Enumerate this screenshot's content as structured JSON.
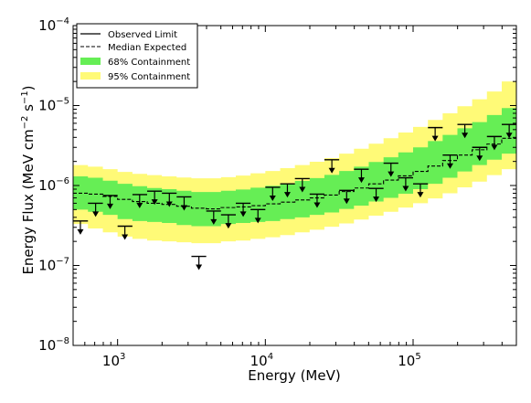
{
  "chart_data": {
    "type": "line",
    "title": "",
    "xlabel": "Energy (MeV)",
    "ylabel_main": "Energy Flux (MeV cm",
    "ylabel_exp1": "−2",
    "ylabel_mid": " s",
    "ylabel_exp2": "−1",
    "ylabel_end": ")",
    "x_scale": "log",
    "y_scale": "log",
    "xlim": [
      500,
      500000
    ],
    "ylim": [
      1e-08,
      0.0001
    ],
    "grid": false,
    "legend_position": "top-left",
    "x_ticks": [
      {
        "value": 1000,
        "base": "10",
        "exp": "3"
      },
      {
        "value": 10000,
        "base": "10",
        "exp": "4"
      },
      {
        "value": 100000,
        "base": "10",
        "exp": "5"
      }
    ],
    "y_ticks": [
      {
        "value": 1e-08,
        "base": "10",
        "exp": "-8"
      },
      {
        "value": 1e-07,
        "base": "10",
        "exp": "-7"
      },
      {
        "value": 1e-06,
        "base": "10",
        "exp": "-6"
      },
      {
        "value": 1e-05,
        "base": "10",
        "exp": "-5"
      },
      {
        "value": 0.0001,
        "base": "10",
        "exp": "-4"
      }
    ],
    "legend": [
      {
        "label": "Observed Limit",
        "style": "solid"
      },
      {
        "label": "Median Expected",
        "style": "dashed"
      },
      {
        "label": "68% Containment",
        "style": "band",
        "color": "#66ee55"
      },
      {
        "label": "95% Containment",
        "style": "band",
        "color": "#fffa77"
      }
    ],
    "colors": {
      "band68": "#66ee55",
      "band95": "#fffa77",
      "lines": "#000000"
    },
    "bin_edges": [
      500,
      630,
      795,
      1000,
      1260,
      1585,
      1995,
      2510,
      3160,
      3980,
      5010,
      6310,
      7940,
      10000,
      12600,
      15850,
      19950,
      25100,
      31600,
      39800,
      50100,
      63100,
      79400,
      100000,
      126000,
      158500,
      199500,
      251000,
      316000,
      398000,
      500000
    ],
    "median_expected": [
      8e-07,
      7.8e-07,
      7.3e-07,
      6.7e-07,
      6.3e-07,
      6e-07,
      5.8e-07,
      5.5e-07,
      5.2e-07,
      5.1e-07,
      5.3e-07,
      5.4e-07,
      5.6e-07,
      5.9e-07,
      6.2e-07,
      6.6e-07,
      7e-07,
      7.6e-07,
      8.4e-07,
      9.3e-07,
      1.05e-06,
      1.17e-06,
      1.32e-06,
      1.5e-06,
      1.75e-06,
      2.05e-06,
      2.4e-06,
      2.8e-06,
      3.3e-06,
      3.9e-06
    ],
    "band68_low": [
      5e-07,
      4.7e-07,
      4.3e-07,
      3.8e-07,
      3.6e-07,
      3.5e-07,
      3.4e-07,
      3.2e-07,
      3.1e-07,
      3.1e-07,
      3.3e-07,
      3.4e-07,
      3.5e-07,
      3.6e-07,
      3.8e-07,
      4e-07,
      4.3e-07,
      4.6e-07,
      5.1e-07,
      5.6e-07,
      6.3e-07,
      7e-07,
      7.9e-07,
      9e-07,
      1.05e-06,
      1.25e-06,
      1.5e-06,
      1.8e-06,
      2.1e-06,
      2.5e-06
    ],
    "band68_high": [
      1.3e-06,
      1.25e-06,
      1.15e-06,
      1.05e-06,
      9.8e-07,
      9.3e-07,
      9e-07,
      8.6e-07,
      8.3e-07,
      8.3e-07,
      8.6e-07,
      8.9e-07,
      9.4e-07,
      9.9e-07,
      1.06e-06,
      1.14e-06,
      1.24e-06,
      1.36e-06,
      1.52e-06,
      1.72e-06,
      1.97e-06,
      2.25e-06,
      2.6e-06,
      3e-06,
      3.6e-06,
      4.3e-06,
      5.2e-06,
      6.2e-06,
      7.6e-06,
      9.3e-06
    ],
    "band95_low": [
      3.3e-07,
      2.9e-07,
      2.6e-07,
      2.3e-07,
      2.15e-07,
      2.05e-07,
      2e-07,
      1.95e-07,
      1.9e-07,
      1.9e-07,
      2e-07,
      2.05e-07,
      2.15e-07,
      2.25e-07,
      2.4e-07,
      2.6e-07,
      2.8e-07,
      3.05e-07,
      3.35e-07,
      3.75e-07,
      4.2e-07,
      4.7e-07,
      5.3e-07,
      6e-07,
      6.9e-07,
      8e-07,
      9.5e-07,
      1.12e-06,
      1.35e-06,
      1.6e-06
    ],
    "band95_high": [
      1.8e-06,
      1.72e-06,
      1.6e-06,
      1.48e-06,
      1.4e-06,
      1.35e-06,
      1.3e-06,
      1.26e-06,
      1.23e-06,
      1.23e-06,
      1.27e-06,
      1.33e-06,
      1.42e-06,
      1.52e-06,
      1.65e-06,
      1.8e-06,
      1.98e-06,
      2.2e-06,
      2.5e-06,
      2.88e-06,
      3.33e-06,
      3.9e-06,
      4.6e-06,
      5.4e-06,
      6.6e-06,
      8e-06,
      9.8e-06,
      1.2e-05,
      1.5e-05,
      2e-05
    ],
    "observed_limits": [
      {
        "lo": 500,
        "hi": 630,
        "e": 560,
        "y": 3.6e-07
      },
      {
        "lo": 630,
        "hi": 795,
        "e": 710,
        "y": 6e-07
      },
      {
        "lo": 795,
        "hi": 1000,
        "e": 890,
        "y": 7.5e-07
      },
      {
        "lo": 1000,
        "hi": 1260,
        "e": 1120,
        "y": 3.1e-07
      },
      {
        "lo": 1260,
        "hi": 1585,
        "e": 1410,
        "y": 7.7e-07
      },
      {
        "lo": 1585,
        "hi": 1995,
        "e": 1780,
        "y": 8.5e-07
      },
      {
        "lo": 1995,
        "hi": 2510,
        "e": 2240,
        "y": 8e-07
      },
      {
        "lo": 2510,
        "hi": 3160,
        "e": 2820,
        "y": 7.2e-07
      },
      {
        "lo": 3160,
        "hi": 3980,
        "e": 3550,
        "y": 1.3e-07
      },
      {
        "lo": 3980,
        "hi": 5010,
        "e": 4470,
        "y": 4.8e-07
      },
      {
        "lo": 5010,
        "hi": 6310,
        "e": 5620,
        "y": 4.3e-07
      },
      {
        "lo": 6310,
        "hi": 7940,
        "e": 7080,
        "y": 6e-07
      },
      {
        "lo": 7940,
        "hi": 10000,
        "e": 8910,
        "y": 5e-07
      },
      {
        "lo": 10000,
        "hi": 12600,
        "e": 11200,
        "y": 9.5e-07
      },
      {
        "lo": 12600,
        "hi": 15850,
        "e": 14100,
        "y": 1.05e-06
      },
      {
        "lo": 15850,
        "hi": 19950,
        "e": 17800,
        "y": 1.22e-06
      },
      {
        "lo": 19950,
        "hi": 25100,
        "e": 22400,
        "y": 7.8e-07
      },
      {
        "lo": 25100,
        "hi": 31600,
        "e": 28200,
        "y": 2.1e-06
      },
      {
        "lo": 31600,
        "hi": 39800,
        "e": 35500,
        "y": 8.7e-07
      },
      {
        "lo": 39800,
        "hi": 50100,
        "e": 44700,
        "y": 1.6e-06
      },
      {
        "lo": 50100,
        "hi": 63100,
        "e": 56200,
        "y": 9.2e-07
      },
      {
        "lo": 63100,
        "hi": 79400,
        "e": 70800,
        "y": 1.9e-06
      },
      {
        "lo": 79400,
        "hi": 100000,
        "e": 89100,
        "y": 1.25e-06
      },
      {
        "lo": 100000,
        "hi": 126000,
        "e": 112000,
        "y": 1.05e-06
      },
      {
        "lo": 126000,
        "hi": 158500,
        "e": 141000,
        "y": 5.3e-06
      },
      {
        "lo": 158500,
        "hi": 199500,
        "e": 178000,
        "y": 2.4e-06
      },
      {
        "lo": 199500,
        "hi": 251000,
        "e": 224000,
        "y": 5.8e-06
      },
      {
        "lo": 251000,
        "hi": 316000,
        "e": 282000,
        "y": 3e-06
      },
      {
        "lo": 316000,
        "hi": 398000,
        "e": 355000,
        "y": 4.1e-06
      },
      {
        "lo": 398000,
        "hi": 500000,
        "e": 447000,
        "y": 5.8e-06
      }
    ]
  }
}
